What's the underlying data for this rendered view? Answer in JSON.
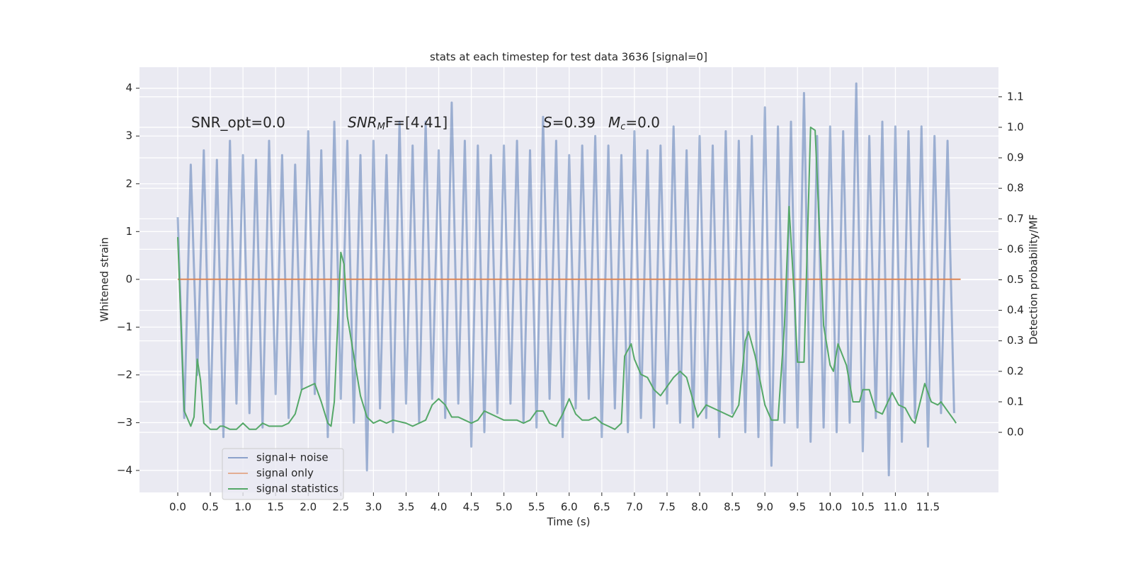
{
  "chart_data": {
    "type": "line",
    "title": "stats at each timestep for test data 3636 [signal=0]",
    "xlabel": "Time (s)",
    "ylabel": "Whitened strain",
    "y2label": "Detection probability/MF",
    "annotations": [
      {
        "base": "SNR_opt=0.0"
      },
      {
        "base": "SNR",
        "sub": "M",
        "rest": "F=[4.41]"
      },
      {
        "base": "S",
        "rest": "=0.39"
      },
      {
        "base": "M",
        "sub": "c",
        "rest": "=0.0"
      }
    ],
    "xlim": [
      -0.586,
      12.58
    ],
    "xticks": [
      {
        "value": 0,
        "label": "0.0"
      },
      0.5,
      {
        "value": 1,
        "label": "1.0"
      },
      1.5,
      {
        "value": 2,
        "label": "2.0"
      },
      2.5,
      {
        "value": 3,
        "label": "3.0"
      },
      3.5,
      {
        "value": 4,
        "label": "4.0"
      },
      4.5,
      {
        "value": 5,
        "label": "5.0"
      },
      5.5,
      {
        "value": 6,
        "label": "6.0"
      },
      6.5,
      {
        "value": 7,
        "label": "7.0"
      },
      7.5,
      {
        "value": 8,
        "label": "8.0"
      },
      8.5,
      {
        "value": 9,
        "label": "9.0"
      },
      9.5,
      {
        "value": 10,
        "label": "10.0"
      },
      10.5,
      {
        "value": 11,
        "label": "11.0"
      },
      11.5
    ],
    "ylim": [
      -4.46,
      4.44
    ],
    "yticks": [
      {
        "value": -4,
        "label": "−4"
      },
      {
        "value": -3,
        "label": "−3"
      },
      {
        "value": -2,
        "label": "−2"
      },
      {
        "value": -1,
        "label": "−1"
      },
      0,
      1,
      2,
      3,
      4
    ],
    "y2lim": [
      -0.197,
      1.197
    ],
    "y2ticks": [
      {
        "value": 0,
        "label": "0.0"
      },
      0.1,
      0.2,
      0.3,
      0.4,
      0.5,
      0.6,
      0.7,
      0.8,
      0.9,
      {
        "value": 1,
        "label": "1.0"
      },
      1.1
    ],
    "grid": true,
    "legend": "lower left",
    "series": [
      {
        "name": "signal+ noise",
        "color": "#4c72b0",
        "x": [
          0.0,
          0.1,
          0.2,
          0.3,
          0.4,
          0.5,
          0.6,
          0.7,
          0.8,
          0.9,
          1.0,
          1.1,
          1.2,
          1.3,
          1.4,
          1.5,
          1.6,
          1.7,
          1.8,
          1.9,
          2.0,
          2.1,
          2.2,
          2.3,
          2.4,
          2.5,
          2.6,
          2.7,
          2.8,
          2.9,
          3.0,
          3.1,
          3.2,
          3.3,
          3.4,
          3.5,
          3.6,
          3.7,
          3.8,
          3.9,
          4.0,
          4.1,
          4.2,
          4.3,
          4.4,
          4.5,
          4.6,
          4.7,
          4.8,
          4.9,
          5.0,
          5.1,
          5.2,
          5.3,
          5.4,
          5.5,
          5.6,
          5.7,
          5.8,
          5.9,
          6.0,
          6.1,
          6.2,
          6.3,
          6.4,
          6.5,
          6.6,
          6.7,
          6.8,
          6.9,
          7.0,
          7.1,
          7.2,
          7.3,
          7.4,
          7.5,
          7.6,
          7.7,
          7.8,
          7.9,
          8.0,
          8.1,
          8.2,
          8.3,
          8.4,
          8.5,
          8.6,
          8.7,
          8.8,
          8.9,
          9.0,
          9.1,
          9.2,
          9.3,
          9.4,
          9.5,
          9.6,
          9.7,
          9.8,
          9.9,
          10.0,
          10.1,
          10.2,
          10.3,
          10.4,
          10.5,
          10.6,
          10.7,
          10.8,
          10.9,
          11.0,
          11.1,
          11.2,
          11.3,
          11.4,
          11.5,
          11.6,
          11.7,
          11.8,
          11.9
        ],
        "values": [
          1.3,
          -2.9,
          2.4,
          -2.0,
          2.7,
          -3.0,
          2.5,
          -3.3,
          2.9,
          -2.6,
          2.6,
          -2.8,
          2.5,
          -3.1,
          2.9,
          -2.4,
          2.6,
          -2.9,
          2.4,
          -2.3,
          3.1,
          -2.4,
          2.7,
          -3.3,
          3.3,
          -2.5,
          2.9,
          -3.0,
          2.6,
          -4.0,
          2.9,
          -2.7,
          2.6,
          -3.2,
          3.3,
          -2.6,
          2.8,
          -3.0,
          3.3,
          -2.5,
          2.7,
          -2.9,
          3.7,
          -2.6,
          2.9,
          -3.5,
          2.8,
          -3.2,
          2.6,
          -2.8,
          2.8,
          -2.6,
          2.9,
          -3.0,
          2.7,
          -3.1,
          3.4,
          -2.5,
          2.9,
          -3.3,
          2.6,
          -2.7,
          2.8,
          -2.5,
          3.0,
          -3.3,
          2.8,
          -2.7,
          2.6,
          -3.2,
          3.1,
          -2.9,
          2.7,
          -3.1,
          2.8,
          -2.6,
          3.2,
          -3.0,
          2.7,
          -3.1,
          3.0,
          -2.9,
          2.8,
          -3.3,
          3.1,
          -2.8,
          2.9,
          -3.2,
          3.0,
          -3.3,
          3.6,
          -3.9,
          3.2,
          -3.0,
          3.3,
          -3.1,
          3.9,
          -3.4,
          3.0,
          -3.1,
          3.2,
          -3.2,
          3.1,
          -3.0,
          4.1,
          -3.6,
          3.0,
          -2.9,
          3.3,
          -4.1,
          3.2,
          -3.4,
          3.1,
          -2.9,
          3.2,
          -3.5,
          3.0,
          -2.8,
          2.9,
          -2.8
        ]
      },
      {
        "name": "signal only",
        "color": "#dd8452",
        "x": [
          0.0,
          12.0
        ],
        "values": [
          0,
          0
        ]
      },
      {
        "name": "signal statistics",
        "color": "#55a868",
        "axis": "y2",
        "x": [
          0.0,
          0.1,
          0.2,
          0.25,
          0.3,
          0.35,
          0.4,
          0.5,
          0.6,
          0.65,
          0.7,
          0.8,
          0.9,
          1.0,
          1.1,
          1.2,
          1.3,
          1.4,
          1.5,
          1.6,
          1.7,
          1.8,
          1.9,
          2.0,
          2.1,
          2.2,
          2.3,
          2.35,
          2.4,
          2.5,
          2.55,
          2.6,
          2.7,
          2.8,
          2.9,
          3.0,
          3.1,
          3.2,
          3.3,
          3.5,
          3.6,
          3.7,
          3.8,
          3.9,
          4.0,
          4.1,
          4.2,
          4.3,
          4.4,
          4.5,
          4.6,
          4.7,
          4.8,
          4.9,
          5.0,
          5.1,
          5.2,
          5.3,
          5.4,
          5.5,
          5.6,
          5.7,
          5.8,
          5.9,
          6.0,
          6.1,
          6.2,
          6.3,
          6.4,
          6.5,
          6.6,
          6.7,
          6.8,
          6.85,
          6.95,
          7.0,
          7.1,
          7.2,
          7.3,
          7.4,
          7.5,
          7.6,
          7.7,
          7.8,
          7.97,
          8.1,
          8.3,
          8.5,
          8.6,
          8.7,
          8.75,
          8.85,
          9.0,
          9.1,
          9.2,
          9.3,
          9.37,
          9.45,
          9.5,
          9.6,
          9.7,
          9.77,
          9.9,
          10.0,
          10.05,
          10.12,
          10.25,
          10.35,
          10.45,
          10.5,
          10.6,
          10.7,
          10.8,
          10.95,
          11.05,
          11.15,
          11.25,
          11.3,
          11.45,
          11.55,
          11.65,
          11.7,
          11.8,
          11.9,
          11.93
        ],
        "values": [
          0.64,
          0.07,
          0.02,
          0.05,
          0.24,
          0.17,
          0.03,
          0.01,
          0.01,
          0.02,
          0.02,
          0.01,
          0.01,
          0.03,
          0.01,
          0.01,
          0.03,
          0.02,
          0.02,
          0.02,
          0.03,
          0.06,
          0.14,
          0.15,
          0.16,
          0.1,
          0.03,
          0.02,
          0.1,
          0.59,
          0.55,
          0.38,
          0.25,
          0.12,
          0.05,
          0.03,
          0.04,
          0.03,
          0.04,
          0.03,
          0.02,
          0.03,
          0.04,
          0.09,
          0.11,
          0.09,
          0.05,
          0.05,
          0.04,
          0.03,
          0.04,
          0.07,
          0.06,
          0.05,
          0.04,
          0.04,
          0.04,
          0.03,
          0.04,
          0.07,
          0.07,
          0.03,
          0.02,
          0.06,
          0.11,
          0.06,
          0.04,
          0.04,
          0.05,
          0.03,
          0.02,
          0.01,
          0.03,
          0.25,
          0.29,
          0.24,
          0.19,
          0.18,
          0.14,
          0.12,
          0.15,
          0.18,
          0.2,
          0.18,
          0.05,
          0.09,
          0.07,
          0.05,
          0.09,
          0.3,
          0.33,
          0.25,
          0.09,
          0.04,
          0.04,
          0.35,
          0.74,
          0.45,
          0.23,
          0.23,
          1.0,
          0.99,
          0.35,
          0.22,
          0.2,
          0.29,
          0.22,
          0.1,
          0.1,
          0.14,
          0.14,
          0.07,
          0.06,
          0.13,
          0.09,
          0.08,
          0.04,
          0.03,
          0.16,
          0.1,
          0.09,
          0.1,
          0.07,
          0.04,
          0.03
        ]
      }
    ]
  }
}
